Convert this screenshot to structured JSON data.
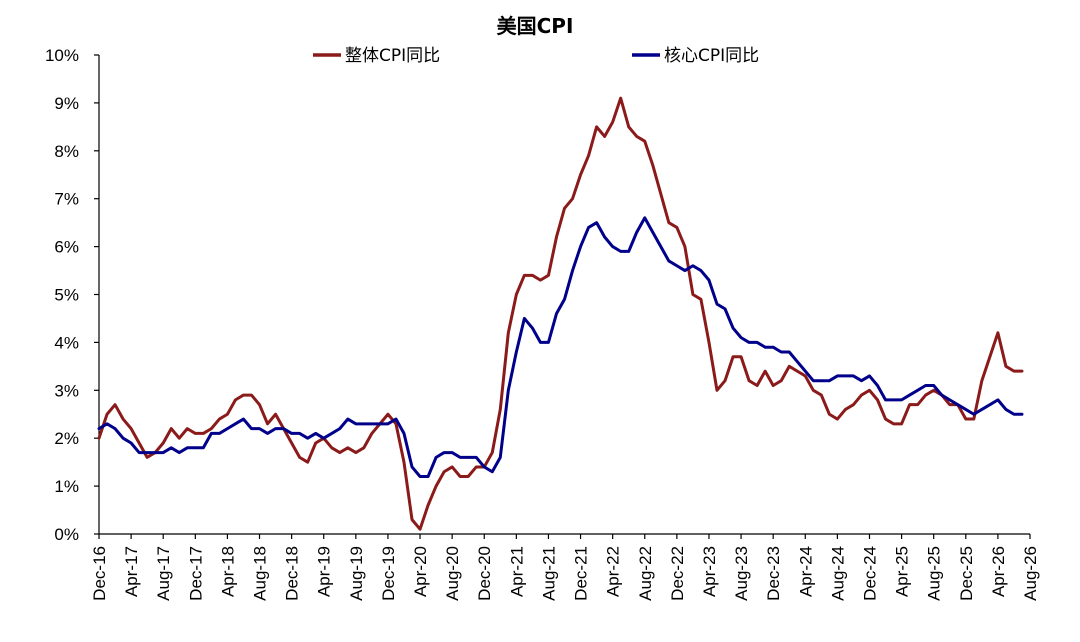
{
  "chart_data": {
    "type": "line",
    "title": "美国CPI",
    "xlabel": "",
    "ylabel": "",
    "ylim": [
      0,
      10
    ],
    "yticks": [
      "0%",
      "1%",
      "2%",
      "3%",
      "4%",
      "5%",
      "6%",
      "7%",
      "8%",
      "9%",
      "10%"
    ],
    "xtick_labels": [
      "Dec-16",
      "Apr-17",
      "Aug-17",
      "Dec-17",
      "Apr-18",
      "Aug-18",
      "Dec-18",
      "Apr-19",
      "Aug-19",
      "Dec-19",
      "Apr-20",
      "Aug-20",
      "Dec-20",
      "Apr-21",
      "Aug-21",
      "Dec-21",
      "Apr-22",
      "Aug-22",
      "Dec-22",
      "Apr-23",
      "Aug-23",
      "Dec-23",
      "Apr-24",
      "Aug-24",
      "Dec-24",
      "Apr-25",
      "Aug-25",
      "Dec-25",
      "Apr-26",
      "Aug-26"
    ],
    "x_start": "2016-12",
    "legend_position": "top",
    "grid": false,
    "series": [
      {
        "name": "整体CPI同比",
        "color": "#8B1A1A",
        "values": [
          2.0,
          2.5,
          2.7,
          2.4,
          2.2,
          1.9,
          1.6,
          1.7,
          1.9,
          2.2,
          2.0,
          2.2,
          2.1,
          2.1,
          2.2,
          2.4,
          2.5,
          2.8,
          2.9,
          2.9,
          2.7,
          2.3,
          2.5,
          2.2,
          1.9,
          1.6,
          1.5,
          1.9,
          2.0,
          1.8,
          1.7,
          1.8,
          1.7,
          1.8,
          2.1,
          2.3,
          2.5,
          2.3,
          1.5,
          0.3,
          0.1,
          0.6,
          1.0,
          1.3,
          1.4,
          1.2,
          1.2,
          1.4,
          1.4,
          1.7,
          2.6,
          4.2,
          5.0,
          5.4,
          5.4,
          5.3,
          5.4,
          6.2,
          6.8,
          7.0,
          7.5,
          7.9,
          8.5,
          8.3,
          8.6,
          9.1,
          8.5,
          8.3,
          8.2,
          7.7,
          7.1,
          6.5,
          6.4,
          6.0,
          5.0,
          4.9,
          4.0,
          3.0,
          3.2,
          3.7,
          3.7,
          3.2,
          3.1,
          3.4,
          3.1,
          3.2,
          3.5,
          3.4,
          3.3,
          3.0,
          2.9,
          2.5,
          2.4,
          2.6,
          2.7,
          2.9,
          3.0,
          2.8,
          2.4,
          2.3,
          2.3,
          2.7,
          2.7,
          2.9,
          3.0,
          2.9,
          2.7,
          2.7,
          2.4,
          2.4,
          3.2,
          3.7,
          4.2,
          3.5,
          3.4,
          3.4
        ]
      },
      {
        "name": "核心CPI同比",
        "color": "#00008B",
        "values": [
          2.2,
          2.3,
          2.2,
          2.0,
          1.9,
          1.7,
          1.7,
          1.7,
          1.7,
          1.8,
          1.7,
          1.8,
          1.8,
          1.8,
          2.1,
          2.1,
          2.2,
          2.3,
          2.4,
          2.2,
          2.2,
          2.1,
          2.2,
          2.2,
          2.1,
          2.1,
          2.0,
          2.1,
          2.0,
          2.1,
          2.2,
          2.4,
          2.3,
          2.3,
          2.3,
          2.3,
          2.3,
          2.4,
          2.1,
          1.4,
          1.2,
          1.2,
          1.6,
          1.7,
          1.7,
          1.6,
          1.6,
          1.6,
          1.4,
          1.3,
          1.6,
          3.0,
          3.8,
          4.5,
          4.3,
          4.0,
          4.0,
          4.6,
          4.9,
          5.5,
          6.0,
          6.4,
          6.5,
          6.2,
          6.0,
          5.9,
          5.9,
          6.3,
          6.6,
          6.3,
          6.0,
          5.7,
          5.6,
          5.5,
          5.6,
          5.5,
          5.3,
          4.8,
          4.7,
          4.3,
          4.1,
          4.0,
          4.0,
          3.9,
          3.9,
          3.8,
          3.8,
          3.6,
          3.4,
          3.2,
          3.2,
          3.2,
          3.3,
          3.3,
          3.3,
          3.2,
          3.3,
          3.1,
          2.8,
          2.8,
          2.8,
          2.9,
          3.0,
          3.1,
          3.1,
          2.9,
          2.8,
          2.7,
          2.6,
          2.5,
          2.6,
          2.7,
          2.8,
          2.6,
          2.5,
          2.5
        ]
      }
    ]
  }
}
